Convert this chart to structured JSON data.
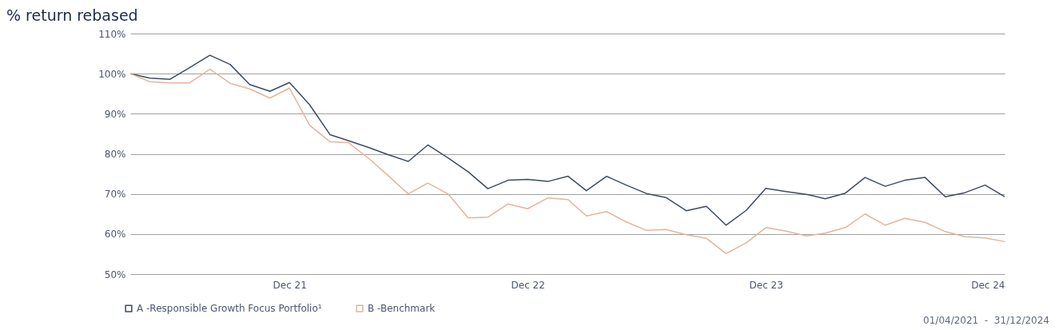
{
  "chart_data": {
    "type": "line",
    "title": "% return rebased",
    "x": [
      "2021-04",
      "2021-05",
      "2021-06",
      "2021-07",
      "2021-08",
      "2021-09",
      "2021-10",
      "2021-11",
      "2021-12",
      "2022-01",
      "2022-02",
      "2022-03",
      "2022-04",
      "2022-05",
      "2022-06",
      "2022-07",
      "2022-08",
      "2022-09",
      "2022-10",
      "2022-11",
      "2022-12",
      "2023-01",
      "2023-02",
      "2023-03",
      "2023-04",
      "2023-05",
      "2023-06",
      "2023-07",
      "2023-08",
      "2023-09",
      "2023-10",
      "2023-11",
      "2023-12",
      "2024-01",
      "2024-02",
      "2024-03",
      "2024-04",
      "2024-05",
      "2024-06",
      "2024-07",
      "2024-08",
      "2024-09",
      "2024-10",
      "2024-11",
      "2024-12"
    ],
    "series": [
      {
        "name": "A -Responsible Growth Focus Portfolio¹",
        "color": "#3d4b63",
        "values": [
          100,
          98.9,
          98.6,
          101.5,
          104.6,
          102.3,
          97.3,
          95.6,
          97.8,
          92.2,
          84.8,
          83.3,
          81.6,
          79.8,
          78.1,
          82.2,
          79,
          75.5,
          71.3,
          73.4,
          73.6,
          73.1,
          74.4,
          70.8,
          74.4,
          72.2,
          70.1,
          69.1,
          65.8,
          66.9,
          62.2,
          65.9,
          71.4,
          70.6,
          69.9,
          68.8,
          70.2,
          74.1,
          71.9,
          73.4,
          74.1,
          69.3,
          70.3,
          72.2,
          69.3
        ]
      },
      {
        "name": "B -Benchmark",
        "color": "#e5b49d",
        "values": [
          100,
          98,
          97.7,
          97.7,
          101.1,
          97.6,
          96.2,
          93.9,
          96.4,
          87.1,
          83,
          82.8,
          78.9,
          74.6,
          70,
          72.7,
          70,
          64,
          64.2,
          67.5,
          66.3,
          69,
          68.6,
          64.5,
          65.6,
          63,
          60.9,
          61.1,
          59.8,
          58.9,
          55.1,
          57.8,
          61.6,
          60.7,
          59.5,
          60.2,
          61.6,
          65,
          62.2,
          63.9,
          62.9,
          60.6,
          59.3,
          59,
          58.1
        ]
      }
    ],
    "xlim": [
      "2021-04",
      "2024-12"
    ],
    "xticks": [
      {
        "value": "2021-12",
        "label": "Dec 21"
      },
      {
        "value": "2022-12",
        "label": "Dec 22"
      },
      {
        "value": "2023-12",
        "label": "Dec 23"
      },
      {
        "value": "2024-12",
        "label": "Dec 24"
      }
    ],
    "ylim": [
      50,
      110
    ],
    "yticks": [
      {
        "value": 50,
        "label": "50%"
      },
      {
        "value": 60,
        "label": "60%"
      },
      {
        "value": 70,
        "label": "70%"
      },
      {
        "value": 80,
        "label": "80%"
      },
      {
        "value": 90,
        "label": "90%"
      },
      {
        "value": 100,
        "label": "100%"
      },
      {
        "value": 110,
        "label": "110%"
      }
    ],
    "grid": "y",
    "legend": "bottom left",
    "marker": "none",
    "line_style": "solid",
    "annotations": [
      "01/04/2021  -  31/12/2024"
    ]
  }
}
